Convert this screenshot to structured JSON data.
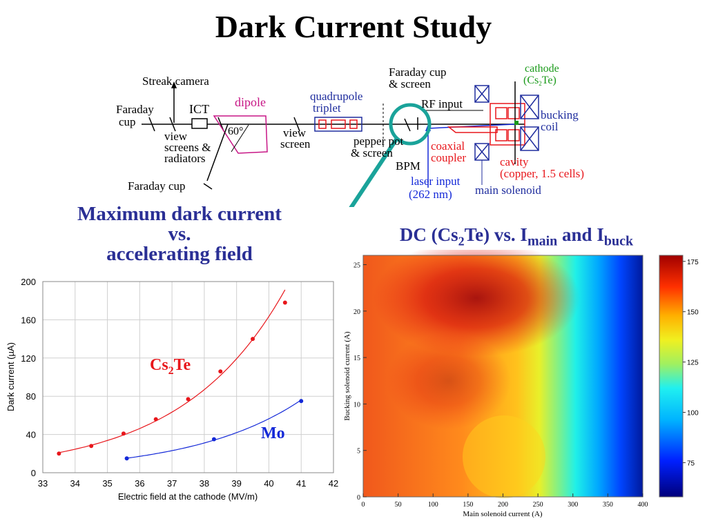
{
  "title": "Dark Current Study",
  "diagram": {
    "streak_camera": "Streak camera",
    "faraday_cup_left_1": "Faraday",
    "faraday_cup_left_2": "cup",
    "ict": "ICT",
    "dipole": "dipole",
    "angle": "60°",
    "view_screens_1": "view",
    "view_screens_2": "screens &",
    "view_screens_3": "radiators",
    "faraday_cup_bottom": "Faraday cup",
    "view_screen_1": "view",
    "view_screen_2": "screen",
    "quadrupole_1": "quadrupole",
    "quadrupole_2": "triplet",
    "pepper_pot_1": "pepper pot",
    "pepper_pot_2": "& screen",
    "bpm": "BPM",
    "faraday_cup_top_1": "Faraday cup",
    "faraday_cup_top_2": "& screen",
    "rf_input": "RF input",
    "coaxial_1": "coaxial",
    "coaxial_2": "coupler",
    "laser_1": "laser input",
    "laser_2": "(262 nm)",
    "cathode_1": "cathode",
    "cathode_2a": "(Cs",
    "cathode_2b": "2",
    "cathode_2c": "Te)",
    "bucking_1": "bucking",
    "bucking_2": "coil",
    "cavity_1": "cavity",
    "cavity_2": "(copper, 1.5 cells)",
    "main_solenoid": "main solenoid"
  },
  "left_heading": {
    "line1": "Maximum dark current",
    "line2": "vs.",
    "line3": "accelerating field"
  },
  "right_heading": {
    "part1": "DC (Cs",
    "sub": "2",
    "part2": "Te) vs. I",
    "main_sub": "main",
    "part3": " and I",
    "buck_sub": "buck"
  },
  "chart_data": [
    {
      "type": "line",
      "xlabel": "Electric field at the cathode (MV/m)",
      "ylabel": "Dark current (µA)",
      "xlim": [
        33,
        42
      ],
      "ylim": [
        0,
        200
      ],
      "x_ticks": [
        33,
        34,
        35,
        36,
        37,
        38,
        39,
        40,
        41,
        42
      ],
      "y_ticks": [
        0,
        40,
        80,
        120,
        160,
        200
      ],
      "grid": true,
      "series": [
        {
          "name": "Cs₂Te",
          "label_main": "Cs",
          "label_sub": "2",
          "label_tail": "Te",
          "color": "#e8161b",
          "x": [
            33.5,
            34.5,
            35.5,
            36.5,
            37.5,
            38.5,
            39.5,
            40.5
          ],
          "y": [
            20,
            28,
            41,
            56,
            77,
            106,
            140,
            178
          ]
        },
        {
          "name": "Mo",
          "label_main": "Mo",
          "color": "#1429d8",
          "x": [
            35.6,
            38.3,
            41.0
          ],
          "y": [
            15,
            35,
            75
          ]
        }
      ]
    },
    {
      "type": "heatmap",
      "xlabel": "Main solenoid current (A)",
      "ylabel": "Bucking solenoid current (A)",
      "xlim": [
        0,
        400
      ],
      "ylim": [
        0,
        26
      ],
      "x_ticks": [
        0,
        50,
        100,
        150,
        200,
        250,
        300,
        350,
        400
      ],
      "y_ticks": [
        0,
        5,
        10,
        15,
        20,
        25
      ],
      "colorbar_ticks": [
        75,
        100,
        125,
        150,
        175
      ],
      "colorbar_range": [
        58,
        178
      ]
    }
  ]
}
